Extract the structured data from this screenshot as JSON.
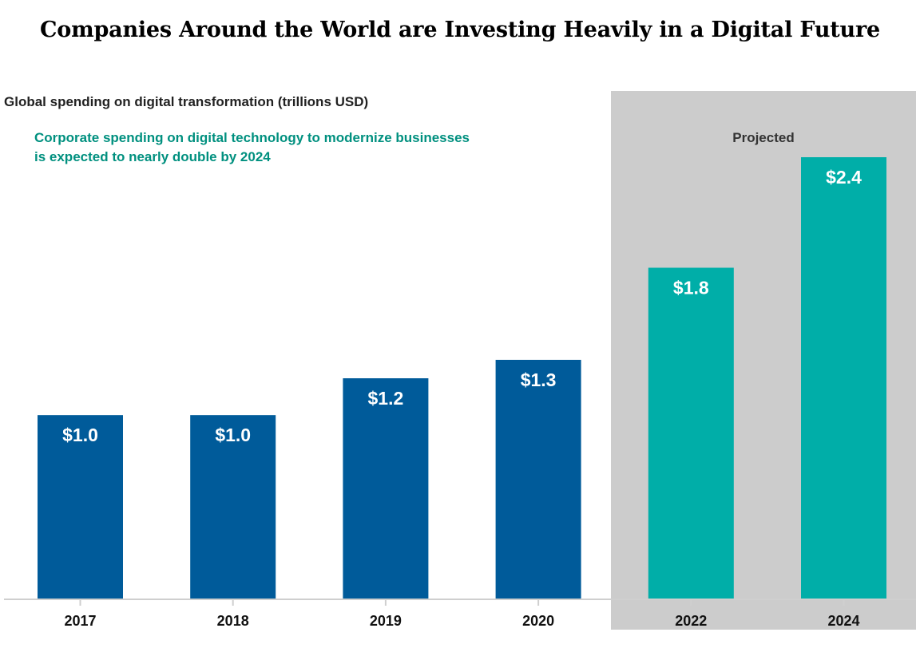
{
  "title": "Companies Around the World are Investing Heavily in a Digital Future",
  "chart_data": {
    "type": "bar",
    "subtitle": "Global spending on digital transformation (trillions USD)",
    "annotation_lines": [
      "Corporate spending on digital technology to modernize businesses",
      "is expected to nearly double by 2024"
    ],
    "projected_label": "Projected",
    "categories": [
      "2017",
      "2018",
      "2019",
      "2020",
      "2022",
      "2024"
    ],
    "values": [
      1.0,
      1.0,
      1.2,
      1.3,
      1.8,
      2.4
    ],
    "value_labels": [
      "$1.0",
      "$1.0",
      "$1.2",
      "$1.3",
      "$1.8",
      "$2.4"
    ],
    "projected": [
      false,
      false,
      false,
      false,
      true,
      true
    ],
    "ylim": [
      0,
      2.4
    ],
    "grid": false,
    "colors": {
      "actual": "#005b9a",
      "projected": "#00aea8",
      "projected_bg": "#cccccc",
      "annotation": "#00907f",
      "axis": "#cfcfcf"
    }
  }
}
